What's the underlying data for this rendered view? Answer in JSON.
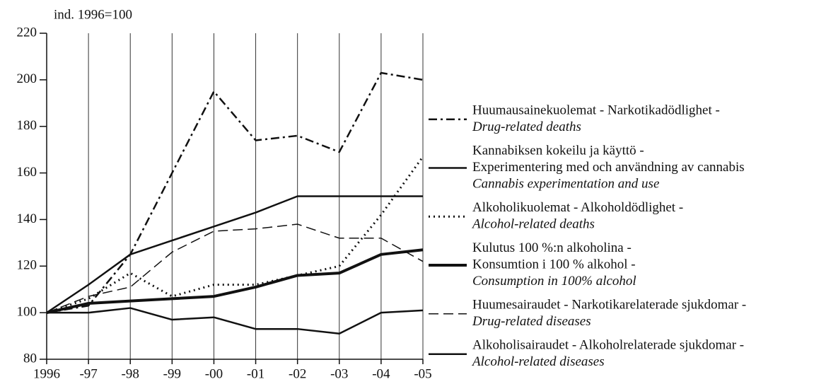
{
  "chart_data": {
    "type": "line",
    "y_label": "ind. 1996=100",
    "categories": [
      "1996",
      "-97",
      "-98",
      "-99",
      "-00",
      "-01",
      "-02",
      "-03",
      "-04",
      "-05"
    ],
    "ylim": [
      80,
      220
    ],
    "yticks": [
      80,
      100,
      120,
      140,
      160,
      180,
      200,
      220
    ],
    "grid": "vertical",
    "series": [
      {
        "name": [
          "Huumausainekuolemat - Narkotikadödlighet -",
          "Drug-related deaths"
        ],
        "color": "#111",
        "dash": "dash-dot",
        "width": 2.5,
        "values": [
          100,
          103,
          125,
          160,
          195,
          174,
          176,
          169,
          203,
          200
        ]
      },
      {
        "name": [
          "Kannabiksen kokeilu ja käyttö -",
          "Experimentering med och användning av cannabis",
          "Cannabis experimentation and use"
        ],
        "color": "#111",
        "dash": "solid",
        "width": 2.5,
        "values": [
          100,
          112,
          125,
          131,
          137,
          143,
          150,
          150,
          150,
          150
        ]
      },
      {
        "name": [
          "Alkoholikuolemat - Alkoholdödlighet -",
          "Alcohol-related deaths"
        ],
        "color": "#111",
        "dash": "dotted",
        "width": 3,
        "values": [
          100,
          106,
          117,
          107,
          112,
          112,
          116,
          120,
          142,
          167
        ]
      },
      {
        "name": [
          "Kulutus 100 %:n alkoholina -",
          "Konsumtion i 100 % alkohol -",
          "Consumption in 100% alcohol"
        ],
        "color": "#111",
        "dash": "solid",
        "width": 4,
        "values": [
          100,
          104,
          105,
          106,
          107,
          111,
          116,
          117,
          125,
          127
        ]
      },
      {
        "name": [
          "Huumesairaudet - Narkotikarelaterade sjukdomar -",
          "Drug-related diseases"
        ],
        "color": "#111",
        "dash": "dashed",
        "width": 1.5,
        "values": [
          100,
          107,
          111,
          126,
          135,
          136,
          138,
          132,
          132,
          122
        ]
      },
      {
        "name": [
          "Alkoholisairaudet - Alkoholrelaterade sjukdomar -",
          "Alcohol-related diseases"
        ],
        "color": "#111",
        "dash": "solid",
        "width": 2.5,
        "values": [
          100,
          100,
          102,
          97,
          98,
          93,
          93,
          91,
          100,
          101
        ]
      }
    ]
  }
}
